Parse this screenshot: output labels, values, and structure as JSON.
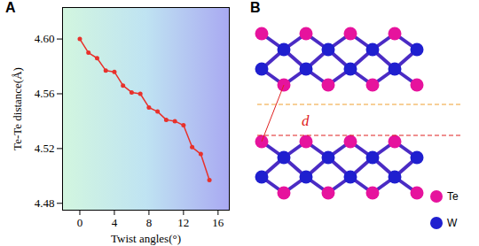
{
  "chart_data": {
    "type": "line",
    "title": "A",
    "x": [
      0,
      1,
      2,
      3,
      4,
      5,
      6,
      7,
      8,
      9,
      10,
      11,
      12,
      13,
      14,
      15
    ],
    "values": [
      4.6,
      4.59,
      4.586,
      4.577,
      4.576,
      4.566,
      4.561,
      4.56,
      4.55,
      4.547,
      4.541,
      4.54,
      4.537,
      4.521,
      4.516,
      4.497
    ],
    "xlabel": "Twist angles(°)",
    "ylabel": "Te-Te distance(Å)",
    "xlim": [
      -2,
      17.3
    ],
    "ylim": [
      4.475,
      4.623
    ],
    "xticks": [
      0,
      4,
      8,
      12,
      16
    ],
    "yticks": [
      4.48,
      4.52,
      4.56,
      {
        "value": 4.6,
        "label": "4.60"
      }
    ],
    "color": "#e8312b",
    "marker": "circle"
  },
  "diagram": {
    "panel_label": "B",
    "distance_label": "d",
    "legend": [
      {
        "label": "Te",
        "color": "#e6139d"
      },
      {
        "label": "W",
        "color": "#1f1fcf"
      }
    ]
  }
}
